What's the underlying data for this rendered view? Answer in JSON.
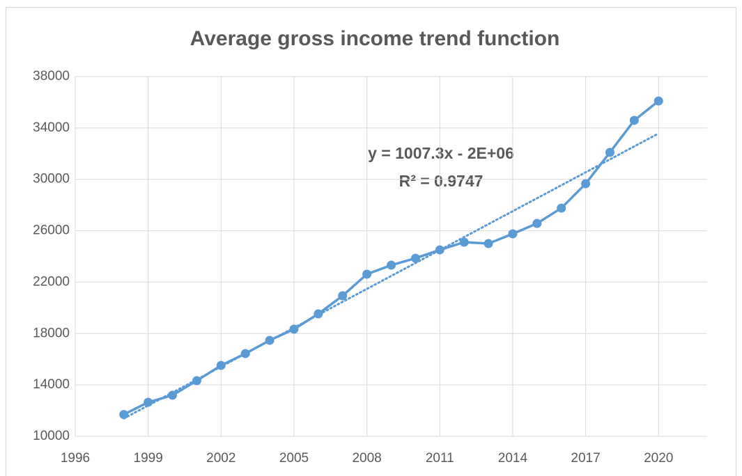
{
  "chart_data": {
    "type": "line",
    "title": "Average gross income trend function",
    "x": [
      1998,
      1999,
      2000,
      2001,
      2002,
      2003,
      2004,
      2005,
      2006,
      2007,
      2008,
      2009,
      2010,
      2011,
      2012,
      2013,
      2014,
      2015,
      2016,
      2017,
      2018,
      2019,
      2020
    ],
    "series": [
      {
        "name": "Average gross income",
        "color": "#5b9bd5",
        "values": [
          11700,
          12650,
          13200,
          14330,
          15520,
          16440,
          17470,
          18340,
          19530,
          20940,
          22620,
          23320,
          23860,
          24510,
          25110,
          25000,
          25760,
          26570,
          27760,
          29660,
          32100,
          34590,
          36100
        ]
      }
    ],
    "trendline": "linear",
    "annotations": [
      "y = 1007.3x - 2E+06",
      "R² = 0.9747"
    ],
    "xlim": [
      1996,
      2022
    ],
    "xticks": [
      1996,
      1999,
      2002,
      2005,
      2008,
      2011,
      2014,
      2017,
      2020
    ],
    "ylim": [
      10000,
      38000
    ],
    "yticks": [
      10000,
      14000,
      18000,
      22000,
      26000,
      30000,
      34000,
      38000
    ],
    "grid": true
  }
}
